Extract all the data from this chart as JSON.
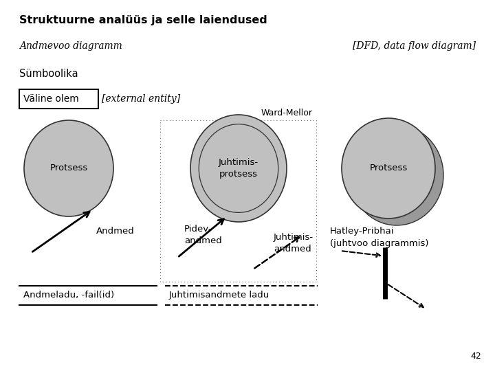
{
  "title": "Struktuurne analüüs ja selle laiendused",
  "subtitle": "Andmevoo diagramm",
  "subtitle_right": "[DFD, data flow diagram]",
  "section": "Sümboolika",
  "box_label": "Väline olem",
  "box_label_italic": "[external entity]",
  "ward_mellor_label": "Ward-Mellor",
  "circle1_label": "Protsess",
  "circle2_label": "Juhtimis-\nprotsess",
  "circle3_label": "Protsess",
  "arrow1_label": "Andmed",
  "arrow2_label": "Pidev-\nandmed",
  "arrow3_label": "Juhtimis-\nandmed",
  "store1_label": "Andmeladu, -fail(id)",
  "store2_label": "Juhtimisandmete ladu",
  "hatley_label": "Hatley-Pribhai\n(juhtvoo diagrammis)",
  "page_number": "42",
  "bg_color": "#ffffff",
  "text_color": "#000000"
}
